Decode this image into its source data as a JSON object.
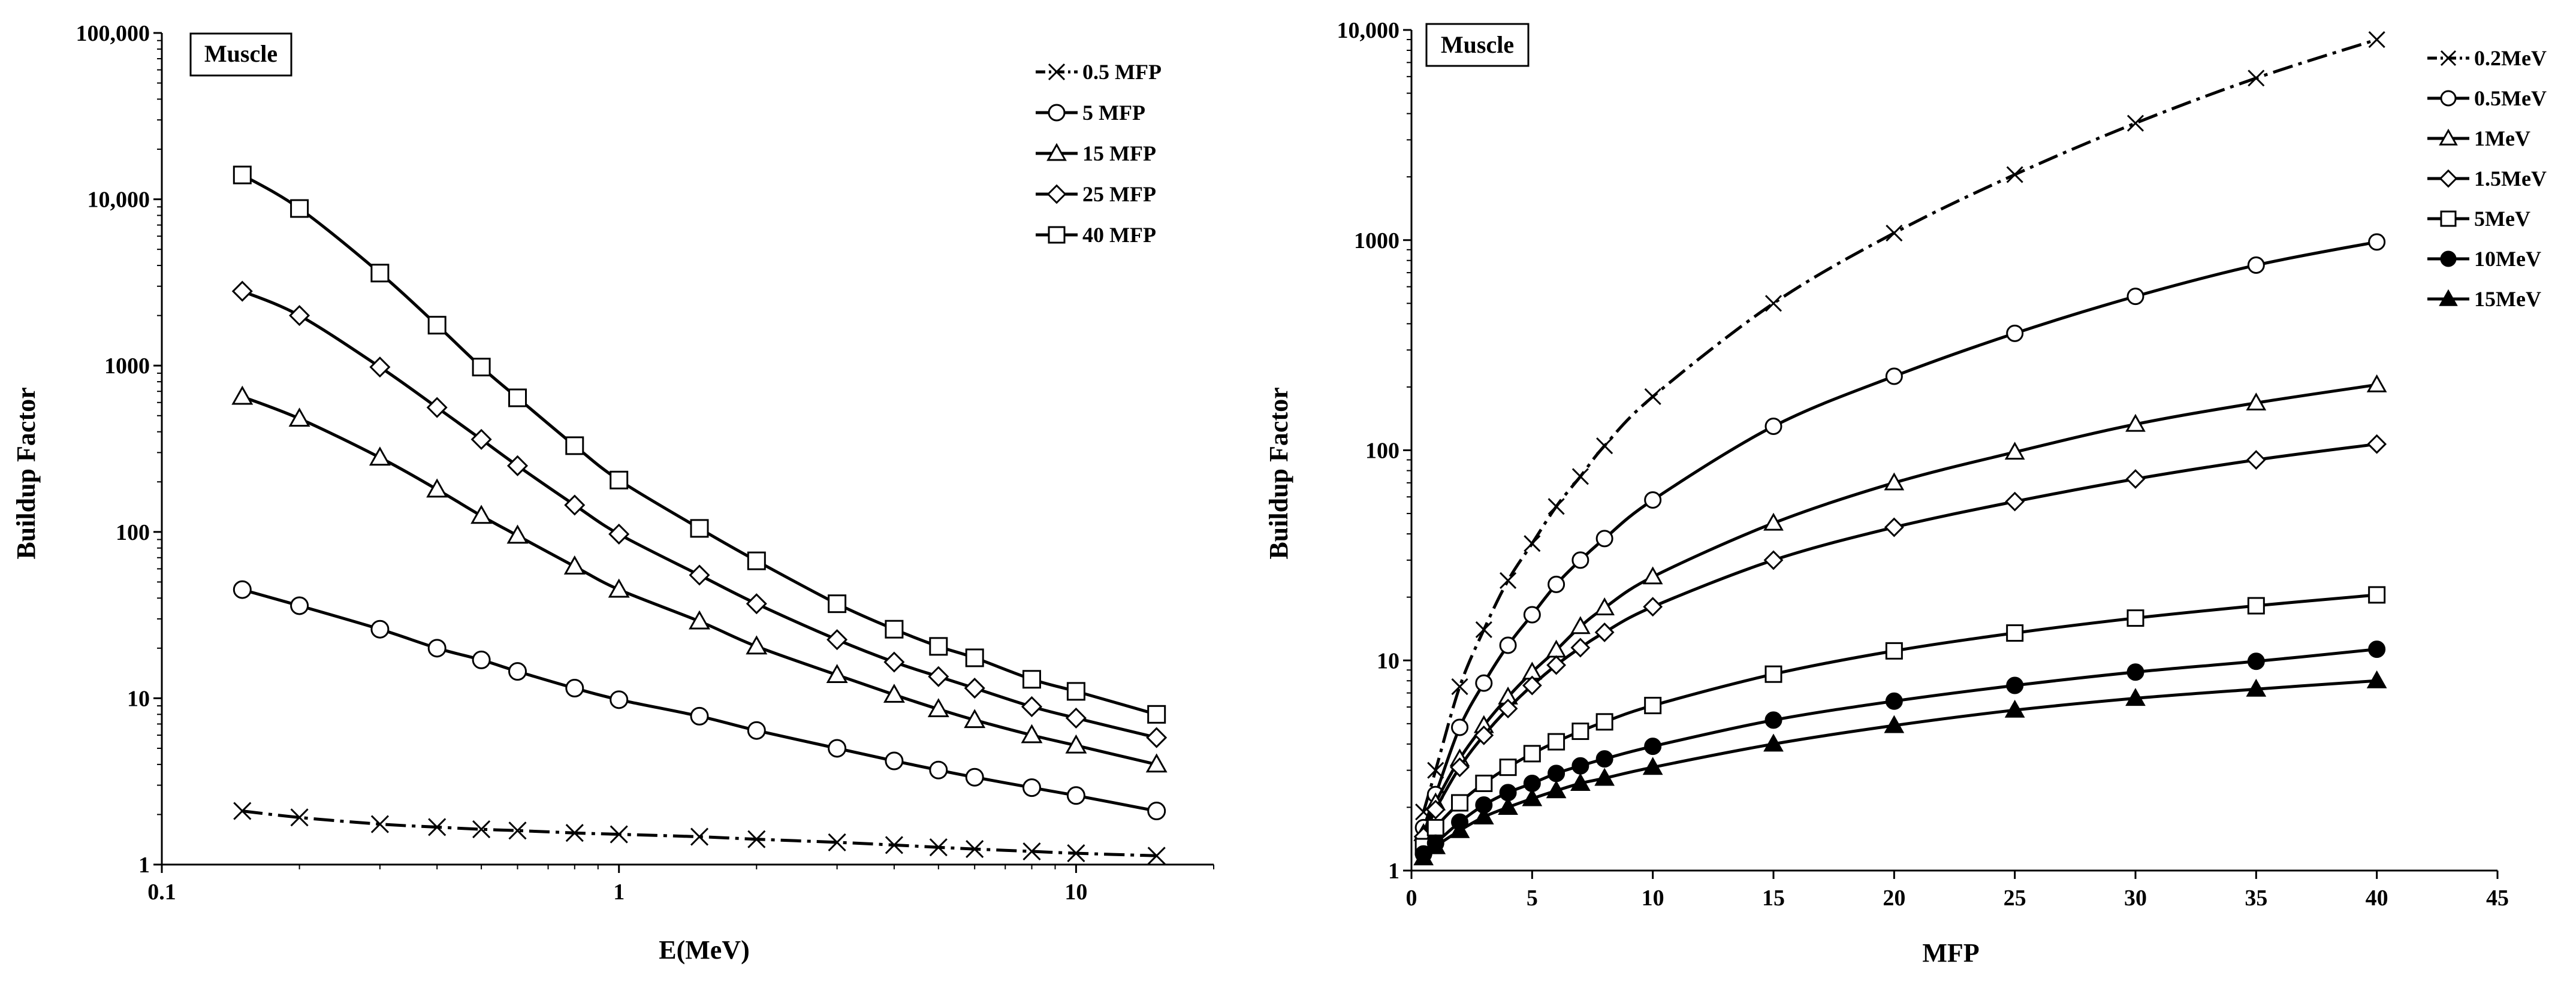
{
  "colors": {
    "ink": "#000000",
    "background": "#ffffff"
  },
  "chart_data": [
    {
      "type": "line",
      "panel": "left",
      "title": "Muscle",
      "xlabel": "E(MeV)",
      "ylabel": "Buildup Factor",
      "xscale": "log",
      "yscale": "log",
      "xlim": [
        0.1,
        20
      ],
      "ylim": [
        1,
        100000
      ],
      "x_ticks": [
        0.1,
        1,
        10
      ],
      "x_tick_labels": [
        "0.1",
        "1",
        "10"
      ],
      "y_ticks": [
        1,
        10,
        100,
        1000,
        10000,
        100000
      ],
      "y_tick_labels": [
        "1",
        "10",
        "100",
        "1000",
        "10,000",
        "100,000"
      ],
      "legend_position": "top-right",
      "x": [
        0.15,
        0.2,
        0.3,
        0.4,
        0.5,
        0.6,
        0.8,
        1,
        1.5,
        2,
        3,
        4,
        5,
        6,
        8,
        10,
        15
      ],
      "series": [
        {
          "name": "0.5 MFP",
          "marker": "x",
          "values": [
            2.1,
            1.92,
            1.75,
            1.68,
            1.63,
            1.6,
            1.55,
            1.52,
            1.47,
            1.42,
            1.36,
            1.31,
            1.27,
            1.24,
            1.2,
            1.17,
            1.13
          ]
        },
        {
          "name": "5 MFP",
          "marker": "circle",
          "values": [
            45,
            36,
            26,
            20,
            17,
            14.5,
            11.5,
            9.8,
            7.8,
            6.4,
            5.0,
            4.2,
            3.7,
            3.35,
            2.9,
            2.6,
            2.1
          ]
        },
        {
          "name": "15 MFP",
          "marker": "triangle",
          "values": [
            650,
            480,
            280,
            180,
            125,
            95,
            62,
            45,
            29,
            20.5,
            13.8,
            10.5,
            8.6,
            7.4,
            6.0,
            5.2,
            4.0
          ]
        },
        {
          "name": "25 MFP",
          "marker": "diamond",
          "values": [
            2800,
            2000,
            980,
            560,
            360,
            250,
            145,
            97,
            55,
            37,
            22.5,
            16.5,
            13.5,
            11.5,
            8.9,
            7.6,
            5.8
          ]
        },
        {
          "name": "40 MFP",
          "marker": "square",
          "values": [
            14000,
            8800,
            3600,
            1750,
            980,
            640,
            330,
            205,
            105,
            67,
            37,
            26,
            20.5,
            17.5,
            13,
            11,
            8
          ]
        }
      ]
    },
    {
      "type": "line",
      "panel": "right",
      "title": "Muscle",
      "xlabel": "MFP",
      "ylabel": "Buildup Factor",
      "xscale": "linear",
      "yscale": "log",
      "xlim": [
        0,
        45
      ],
      "ylim": [
        1,
        10000
      ],
      "x_ticks": [
        0,
        5,
        10,
        15,
        20,
        25,
        30,
        35,
        40,
        45
      ],
      "x_tick_labels": [
        "0",
        "5",
        "10",
        "15",
        "20",
        "25",
        "30",
        "35",
        "40",
        "45"
      ],
      "y_ticks": [
        1,
        10,
        100,
        1000,
        10000
      ],
      "y_tick_labels": [
        "1",
        "10",
        "100",
        "1000",
        "10,000"
      ],
      "legend_position": "top-right",
      "x": [
        0.5,
        1,
        2,
        3,
        4,
        5,
        6,
        7,
        8,
        10,
        15,
        20,
        25,
        30,
        35,
        40
      ],
      "series": [
        {
          "name": "0.2MeV",
          "marker": "x",
          "values": [
            1.9,
            3.0,
            7.5,
            14,
            24,
            36,
            54,
            75,
            105,
            180,
            500,
            1080,
            2050,
            3600,
            5900,
            9000
          ]
        },
        {
          "name": "0.5MeV",
          "marker": "circle",
          "values": [
            1.6,
            2.3,
            4.8,
            7.8,
            11.8,
            16.5,
            23,
            30,
            38,
            58,
            130,
            225,
            360,
            540,
            760,
            980
          ]
        },
        {
          "name": "1MeV",
          "marker": "triangle",
          "values": [
            1.5,
            2.1,
            3.4,
            4.9,
            6.7,
            8.8,
            11.2,
            14.5,
            17.8,
            25,
            45,
            70,
            98,
            133,
            168,
            205
          ]
        },
        {
          "name": "1.5MeV",
          "marker": "diamond",
          "values": [
            1.45,
            1.95,
            3.1,
            4.4,
            5.9,
            7.6,
            9.5,
            11.5,
            13.6,
            18,
            30,
            43,
            57,
            73,
            90,
            107
          ]
        },
        {
          "name": "5MeV",
          "marker": "square",
          "values": [
            1.3,
            1.6,
            2.1,
            2.6,
            3.1,
            3.6,
            4.1,
            4.6,
            5.1,
            6.1,
            8.6,
            11.1,
            13.5,
            15.9,
            18.2,
            20.5
          ]
        },
        {
          "name": "10MeV",
          "marker": "filled-circle",
          "values": [
            1.2,
            1.35,
            1.7,
            2.05,
            2.35,
            2.6,
            2.9,
            3.15,
            3.4,
            3.9,
            5.2,
            6.4,
            7.6,
            8.8,
            9.9,
            11.3
          ]
        },
        {
          "name": "15MeV",
          "marker": "filled-triangle",
          "values": [
            1.15,
            1.3,
            1.55,
            1.8,
            2.0,
            2.2,
            2.4,
            2.6,
            2.75,
            3.1,
            4.0,
            4.9,
            5.8,
            6.6,
            7.3,
            8.0
          ]
        }
      ]
    }
  ]
}
